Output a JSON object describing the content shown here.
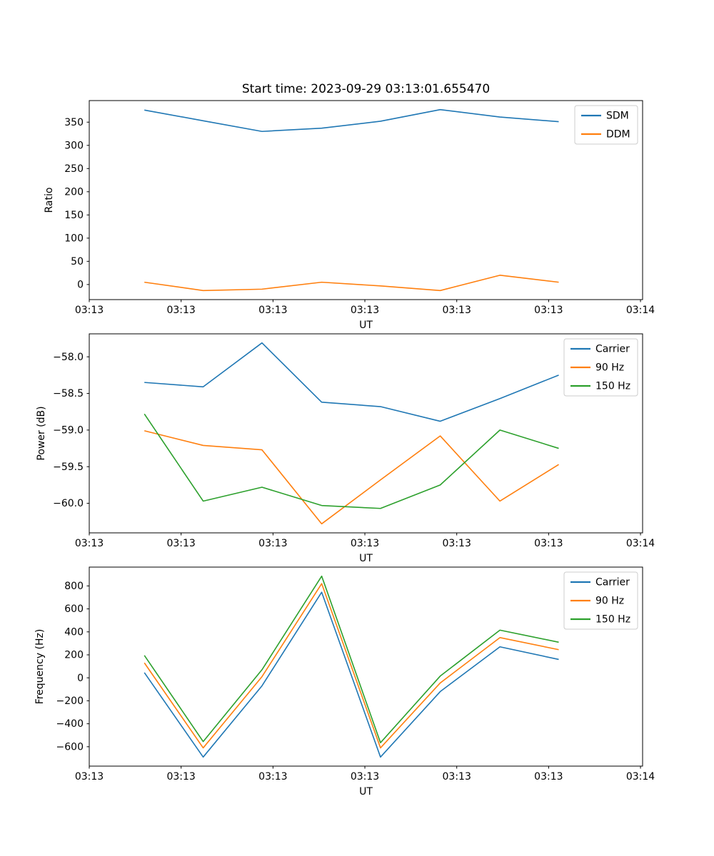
{
  "figure": {
    "title": "Start time: 2023-09-29 03:13:01.655470",
    "background_color": "#ffffff"
  },
  "colors": {
    "blue": "#1f77b4",
    "orange": "#ff7f0e",
    "green": "#2ca02c",
    "axis": "#000000",
    "legend_border": "#cccccc"
  },
  "chart_data": [
    {
      "type": "line",
      "title": "Start time: 2023-09-29 03:13:01.655470",
      "xlabel": "UT",
      "ylabel": "Ratio",
      "grid": false,
      "legend_position": "top-right",
      "x_domain_seconds": [
        0,
        60.23
      ],
      "x_seconds": [
        6.0,
        12.4,
        18.8,
        25.3,
        31.7,
        38.2,
        44.7,
        51.1
      ],
      "xtick_seconds": [
        0,
        10,
        20,
        30,
        40,
        50,
        60
      ],
      "xtick_labels": [
        "03:13",
        "03:13",
        "03:13",
        "03:13",
        "03:13",
        "03:13",
        "03:14"
      ],
      "ytick_values": [
        0,
        50,
        100,
        150,
        200,
        250,
        300,
        350
      ],
      "ytick_labels": [
        "0",
        "50",
        "100",
        "150",
        "200",
        "250",
        "300",
        "350"
      ],
      "series": [
        {
          "name": "SDM",
          "color": "#1f77b4",
          "values": [
            376,
            353,
            330,
            337,
            352,
            377,
            361,
            351
          ]
        },
        {
          "name": "DDM",
          "color": "#ff7f0e",
          "values": [
            5,
            -13,
            -10,
            5,
            -3,
            -13,
            20,
            5
          ]
        }
      ]
    },
    {
      "type": "line",
      "title": "",
      "xlabel": "UT",
      "ylabel": "Power (dB)",
      "grid": false,
      "legend_position": "top-right",
      "x_domain_seconds": [
        0,
        60.23
      ],
      "x_seconds": [
        6.0,
        12.4,
        18.8,
        25.3,
        31.7,
        38.2,
        44.7,
        51.1
      ],
      "xtick_seconds": [
        0,
        10,
        20,
        30,
        40,
        50,
        60
      ],
      "xtick_labels": [
        "03:13",
        "03:13",
        "03:13",
        "03:13",
        "03:13",
        "03:13",
        "03:14"
      ],
      "ytick_values": [
        -58.0,
        -58.5,
        -59.0,
        -59.5,
        -60.0
      ],
      "ytick_labels": [
        "−58.0",
        "−58.5",
        "−59.0",
        "−59.5",
        "−60.0"
      ],
      "series": [
        {
          "name": "Carrier",
          "color": "#1f77b4",
          "values": [
            -58.35,
            -58.41,
            -57.81,
            -58.62,
            -58.68,
            -58.88,
            -58.57,
            -58.25
          ]
        },
        {
          "name": "90 Hz",
          "color": "#ff7f0e",
          "values": [
            -59.01,
            -59.21,
            -59.27,
            -60.28,
            -59.68,
            -59.08,
            -59.97,
            -59.47
          ]
        },
        {
          "name": "150 Hz",
          "color": "#2ca02c",
          "values": [
            -58.78,
            -59.97,
            -59.78,
            -60.03,
            -60.07,
            -59.75,
            -59.0,
            -59.25
          ]
        }
      ]
    },
    {
      "type": "line",
      "title": "",
      "xlabel": "UT",
      "ylabel": "Frequency (Hz)",
      "grid": false,
      "legend_position": "top-right",
      "x_domain_seconds": [
        0,
        60.23
      ],
      "x_seconds": [
        6.0,
        12.4,
        18.8,
        25.3,
        31.7,
        38.2,
        44.7,
        51.1
      ],
      "xtick_seconds": [
        0,
        10,
        20,
        30,
        40,
        50,
        60
      ],
      "xtick_labels": [
        "03:13",
        "03:13",
        "03:13",
        "03:13",
        "03:13",
        "03:13",
        "03:14"
      ],
      "ytick_values": [
        800,
        600,
        400,
        200,
        0,
        -200,
        -400,
        -600
      ],
      "ytick_labels": [
        "800",
        "600",
        "400",
        "200",
        "0",
        "−200",
        "−400",
        "−600"
      ],
      "series": [
        {
          "name": "Carrier",
          "color": "#1f77b4",
          "values": [
            45,
            -690,
            -70,
            745,
            -690,
            -120,
            270,
            160
          ]
        },
        {
          "name": "90 Hz",
          "color": "#ff7f0e",
          "values": [
            130,
            -610,
            10,
            820,
            -610,
            -45,
            350,
            245
          ]
        },
        {
          "name": "150 Hz",
          "color": "#2ca02c",
          "values": [
            195,
            -555,
            70,
            885,
            -565,
            15,
            415,
            310
          ]
        }
      ]
    }
  ]
}
